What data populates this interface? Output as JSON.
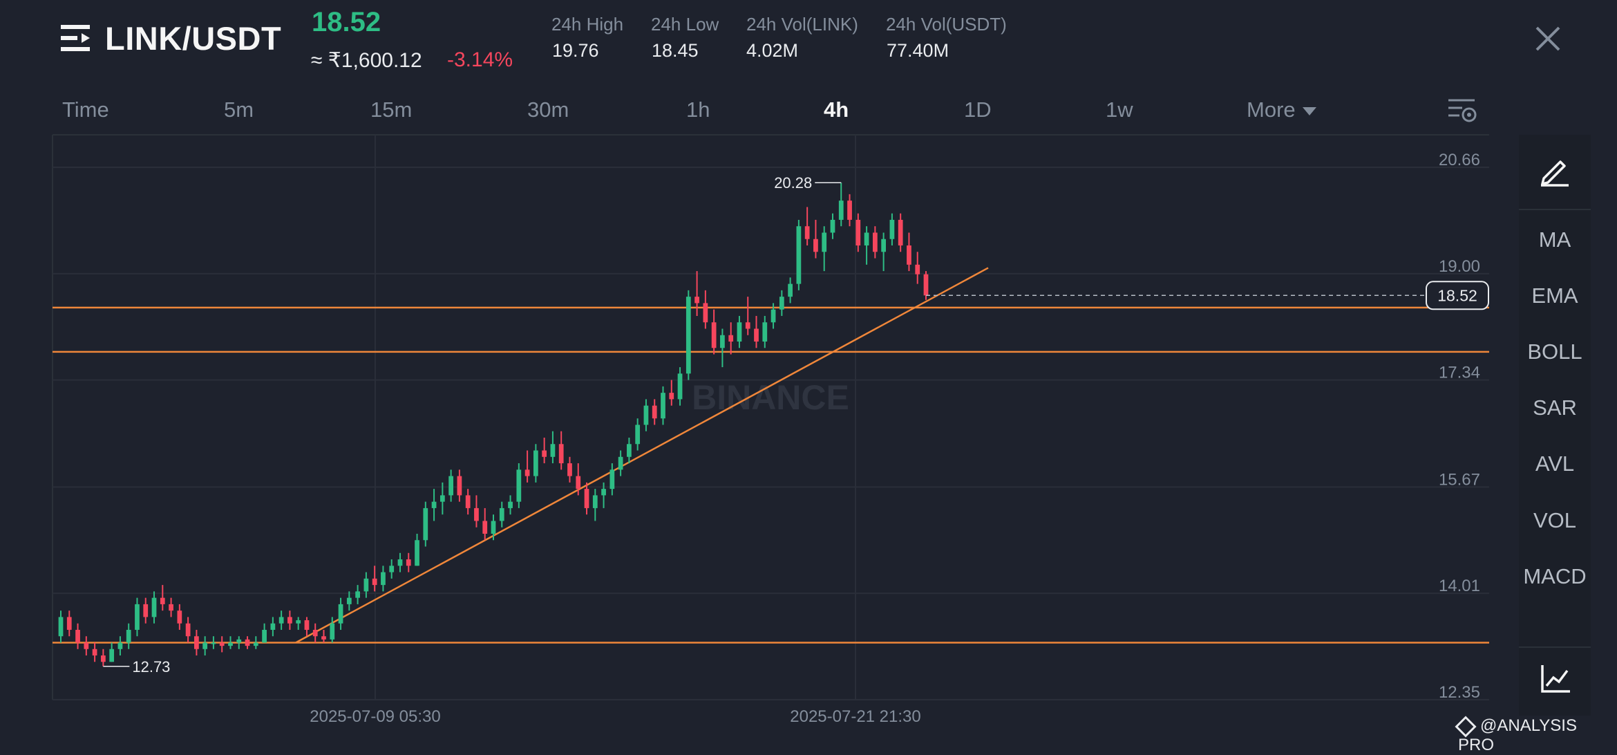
{
  "header": {
    "pair": "LINK/USDT",
    "price": "18.52",
    "price_inr": "≈ ₹1,600.12",
    "change_pct": "-3.14%",
    "stats": [
      {
        "label": "24h High",
        "value": "19.76"
      },
      {
        "label": "24h Low",
        "value": "18.45"
      },
      {
        "label": "24h Vol(LINK)",
        "value": "4.02M"
      },
      {
        "label": "24h Vol(USDT)",
        "value": "77.40M"
      }
    ]
  },
  "tabs": [
    "Time",
    "5m",
    "15m",
    "30m",
    "1h",
    "4h",
    "1D",
    "1w",
    "More"
  ],
  "active_tab": "4h",
  "indicators": [
    "MA",
    "EMA",
    "BOLL",
    "SAR",
    "AVL",
    "VOL",
    "MACD"
  ],
  "watermark": "@ANALYSIS PRO",
  "chart_watermark": "BINANCE",
  "colors": {
    "up": "#2ebd85",
    "down": "#f6465d",
    "line": "#f0873a",
    "bg": "#1e222d"
  },
  "chart_data": {
    "type": "candlestick",
    "y_ticks": [
      "20.66",
      "19.00",
      "17.34",
      "15.67",
      "14.01",
      "12.35"
    ],
    "x_ticks": [
      "2025-07-09 05:30",
      "2025-07-21 21:30"
    ],
    "ylim": [
      12.35,
      20.66
    ],
    "current_price": "18.52",
    "high_marker": "20.28",
    "low_marker": "12.73",
    "horizontal_levels": [
      18.33,
      17.64,
      13.1
    ],
    "trendline": {
      "from": [
        13.1,
        "start"
      ],
      "to": [
        18.95,
        "end"
      ]
    },
    "candles": [
      [
        13.2,
        13.6,
        13.1,
        13.5
      ],
      [
        13.5,
        13.6,
        13.2,
        13.3
      ],
      [
        13.3,
        13.4,
        13.0,
        13.1
      ],
      [
        13.1,
        13.2,
        12.9,
        13.0
      ],
      [
        13.0,
        13.1,
        12.8,
        12.9
      ],
      [
        12.9,
        13.0,
        12.73,
        12.8
      ],
      [
        12.8,
        13.1,
        12.8,
        13.0
      ],
      [
        13.0,
        13.2,
        12.9,
        13.1
      ],
      [
        13.1,
        13.4,
        13.0,
        13.3
      ],
      [
        13.3,
        13.8,
        13.2,
        13.7
      ],
      [
        13.7,
        13.8,
        13.4,
        13.5
      ],
      [
        13.5,
        13.9,
        13.4,
        13.8
      ],
      [
        13.8,
        14.0,
        13.6,
        13.7
      ],
      [
        13.7,
        13.8,
        13.5,
        13.6
      ],
      [
        13.6,
        13.7,
        13.3,
        13.4
      ],
      [
        13.4,
        13.5,
        13.1,
        13.2
      ],
      [
        13.2,
        13.3,
        12.9,
        13.0
      ],
      [
        13.0,
        13.2,
        12.9,
        13.1
      ],
      [
        13.1,
        13.2,
        13.0,
        13.1
      ],
      [
        13.1,
        13.2,
        12.95,
        13.05
      ],
      [
        13.05,
        13.2,
        13.0,
        13.1
      ],
      [
        13.1,
        13.2,
        13.0,
        13.15
      ],
      [
        13.15,
        13.2,
        13.0,
        13.05
      ],
      [
        13.05,
        13.2,
        13.0,
        13.1
      ],
      [
        13.1,
        13.4,
        13.1,
        13.3
      ],
      [
        13.3,
        13.5,
        13.2,
        13.4
      ],
      [
        13.4,
        13.6,
        13.3,
        13.5
      ],
      [
        13.5,
        13.6,
        13.3,
        13.4
      ],
      [
        13.4,
        13.5,
        13.3,
        13.45
      ],
      [
        13.45,
        13.5,
        13.2,
        13.3
      ],
      [
        13.3,
        13.4,
        13.1,
        13.2
      ],
      [
        13.2,
        13.3,
        13.1,
        13.15
      ],
      [
        13.15,
        13.5,
        13.1,
        13.4
      ],
      [
        13.4,
        13.8,
        13.3,
        13.7
      ],
      [
        13.7,
        13.9,
        13.6,
        13.8
      ],
      [
        13.8,
        14.0,
        13.7,
        13.9
      ],
      [
        13.9,
        14.2,
        13.8,
        14.1
      ],
      [
        14.1,
        14.3,
        13.9,
        14.0
      ],
      [
        14.0,
        14.3,
        13.9,
        14.2
      ],
      [
        14.2,
        14.4,
        14.1,
        14.3
      ],
      [
        14.3,
        14.5,
        14.2,
        14.4
      ],
      [
        14.4,
        14.5,
        14.2,
        14.3
      ],
      [
        14.3,
        14.8,
        14.3,
        14.7
      ],
      [
        14.7,
        15.3,
        14.6,
        15.2
      ],
      [
        15.2,
        15.5,
        15.0,
        15.3
      ],
      [
        15.3,
        15.6,
        15.1,
        15.4
      ],
      [
        15.4,
        15.8,
        15.3,
        15.7
      ],
      [
        15.7,
        15.8,
        15.3,
        15.4
      ],
      [
        15.4,
        15.5,
        15.1,
        15.2
      ],
      [
        15.2,
        15.4,
        14.9,
        15.0
      ],
      [
        15.0,
        15.2,
        14.7,
        14.8
      ],
      [
        14.8,
        15.1,
        14.7,
        15.0
      ],
      [
        15.0,
        15.3,
        14.9,
        15.2
      ],
      [
        15.2,
        15.4,
        15.1,
        15.3
      ],
      [
        15.3,
        15.9,
        15.2,
        15.8
      ],
      [
        15.8,
        16.1,
        15.6,
        15.7
      ],
      [
        15.7,
        16.2,
        15.6,
        16.1
      ],
      [
        16.1,
        16.3,
        15.9,
        16.0
      ],
      [
        16.0,
        16.4,
        15.9,
        16.2
      ],
      [
        16.2,
        16.4,
        15.8,
        15.9
      ],
      [
        15.9,
        16.0,
        15.6,
        15.7
      ],
      [
        15.7,
        15.9,
        15.4,
        15.5
      ],
      [
        15.5,
        15.6,
        15.1,
        15.2
      ],
      [
        15.2,
        15.5,
        15.0,
        15.4
      ],
      [
        15.4,
        15.6,
        15.2,
        15.5
      ],
      [
        15.5,
        15.9,
        15.4,
        15.8
      ],
      [
        15.8,
        16.1,
        15.7,
        16.0
      ],
      [
        16.0,
        16.3,
        15.9,
        16.2
      ],
      [
        16.2,
        16.6,
        16.1,
        16.5
      ],
      [
        16.5,
        16.9,
        16.4,
        16.8
      ],
      [
        16.8,
        16.9,
        16.5,
        16.6
      ],
      [
        16.6,
        17.1,
        16.5,
        17.0
      ],
      [
        17.0,
        17.2,
        16.8,
        16.9
      ],
      [
        16.9,
        17.4,
        16.8,
        17.3
      ],
      [
        17.3,
        18.6,
        17.2,
        18.5
      ],
      [
        18.5,
        18.9,
        18.2,
        18.4
      ],
      [
        18.4,
        18.6,
        18.0,
        18.1
      ],
      [
        18.1,
        18.3,
        17.6,
        17.7
      ],
      [
        17.7,
        18.0,
        17.4,
        17.9
      ],
      [
        17.9,
        18.1,
        17.6,
        17.8
      ],
      [
        17.8,
        18.2,
        17.7,
        18.1
      ],
      [
        18.1,
        18.5,
        17.9,
        18.0
      ],
      [
        18.0,
        18.2,
        17.7,
        17.8
      ],
      [
        17.8,
        18.2,
        17.7,
        18.1
      ],
      [
        18.1,
        18.4,
        18.0,
        18.3
      ],
      [
        18.3,
        18.6,
        18.2,
        18.5
      ],
      [
        18.5,
        18.8,
        18.4,
        18.7
      ],
      [
        18.7,
        19.7,
        18.6,
        19.6
      ],
      [
        19.6,
        19.9,
        19.3,
        19.4
      ],
      [
        19.4,
        19.7,
        19.1,
        19.2
      ],
      [
        19.2,
        19.6,
        18.9,
        19.5
      ],
      [
        19.5,
        19.8,
        19.4,
        19.7
      ],
      [
        19.7,
        20.28,
        19.6,
        20.0
      ],
      [
        20.0,
        20.1,
        19.6,
        19.7
      ],
      [
        19.7,
        19.8,
        19.2,
        19.3
      ],
      [
        19.3,
        19.6,
        19.0,
        19.5
      ],
      [
        19.5,
        19.6,
        19.1,
        19.2
      ],
      [
        19.2,
        19.5,
        18.9,
        19.4
      ],
      [
        19.4,
        19.8,
        19.3,
        19.7
      ],
      [
        19.7,
        19.8,
        19.2,
        19.3
      ],
      [
        19.3,
        19.5,
        18.9,
        19.0
      ],
      [
        19.0,
        19.2,
        18.7,
        18.85
      ],
      [
        18.85,
        18.9,
        18.45,
        18.52
      ]
    ]
  }
}
